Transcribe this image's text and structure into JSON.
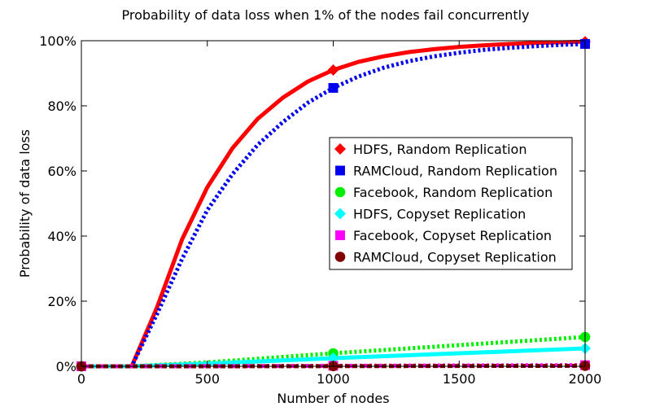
{
  "chart_data": {
    "type": "line",
    "title": "Probability of data loss when 1% of the nodes fail concurrently",
    "xlabel": "Number of nodes",
    "ylabel": "Probability of data loss",
    "xlim": [
      0,
      2000
    ],
    "ylim": [
      0,
      100
    ],
    "xticks": [
      0,
      500,
      1000,
      1500,
      2000
    ],
    "xtick_labels": [
      "0",
      "500",
      "1000",
      "1500",
      "2000"
    ],
    "yticks": [
      0,
      20,
      40,
      60,
      80,
      100
    ],
    "ytick_labels": [
      "0%",
      "20%",
      "40%",
      "60%",
      "80%",
      "100%"
    ],
    "grid": false,
    "legend_position": "center-right",
    "series": [
      {
        "name": "HDFS, Random Replication",
        "color": "#ff0000",
        "line_style": "solid",
        "marker": "diamond",
        "x": [
          0,
          200,
          300,
          400,
          500,
          600,
          700,
          800,
          900,
          1000,
          1100,
          1200,
          1300,
          1400,
          1500,
          1600,
          1700,
          1800,
          1900,
          2000
        ],
        "y": [
          0,
          0,
          18,
          39,
          55,
          67,
          76,
          82.5,
          87.5,
          91,
          93.5,
          95.2,
          96.5,
          97.4,
          98.1,
          98.6,
          99,
          99.3,
          99.5,
          99.7
        ],
        "marker_x": [
          0,
          1000,
          2000
        ],
        "marker_y": [
          0,
          91,
          99.7
        ]
      },
      {
        "name": "RAMCloud, Random Replication",
        "color": "#0000ee",
        "line_style": "dotted",
        "marker": "square",
        "x": [
          0,
          200,
          300,
          400,
          500,
          600,
          700,
          800,
          900,
          1000,
          1100,
          1200,
          1300,
          1400,
          1500,
          1600,
          1700,
          1800,
          1900,
          2000
        ],
        "y": [
          0,
          0,
          16,
          33,
          48,
          59,
          68,
          75,
          81,
          85.5,
          89,
          91.7,
          93.7,
          95.2,
          96.3,
          97.2,
          97.8,
          98.3,
          98.7,
          99
        ],
        "marker_x": [
          0,
          1000,
          2000
        ],
        "marker_y": [
          0,
          85.5,
          99
        ]
      },
      {
        "name": "Facebook, Random Replication",
        "color": "#00ee00",
        "line_style": "dotted",
        "marker": "circle",
        "x": [
          0,
          200,
          500,
          1000,
          1500,
          2000
        ],
        "y": [
          0,
          0,
          1.2,
          4,
          6.5,
          9
        ],
        "marker_x": [
          0,
          1000,
          2000
        ],
        "marker_y": [
          0,
          4,
          9
        ]
      },
      {
        "name": "HDFS, Copyset Replication",
        "color": "#00ffff",
        "line_style": "solid",
        "marker": "diamond",
        "x": [
          0,
          200,
          500,
          1000,
          1500,
          2000
        ],
        "y": [
          0,
          0,
          0.8,
          2.5,
          4,
          5.5
        ],
        "marker_x": [
          0,
          1000,
          2000
        ],
        "marker_y": [
          0,
          2.5,
          5.5
        ]
      },
      {
        "name": "Facebook, Copyset Replication",
        "color": "#ff00ff",
        "line_style": "dotted",
        "marker": "square",
        "x": [
          0,
          200,
          500,
          1000,
          1500,
          2000
        ],
        "y": [
          0,
          0,
          0.05,
          0.15,
          0.25,
          0.35
        ],
        "marker_x": [
          0,
          1000,
          2000
        ],
        "marker_y": [
          0,
          0.15,
          0.35
        ]
      },
      {
        "name": "RAMCloud, Copyset Replication",
        "color": "#800000",
        "line_style": "dashed",
        "marker": "circle",
        "x": [
          0,
          200,
          500,
          1000,
          1500,
          2000
        ],
        "y": [
          0,
          0,
          0,
          0.05,
          0.1,
          0.15
        ],
        "marker_x": [
          0,
          1000,
          2000
        ],
        "marker_y": [
          0,
          0.05,
          0.15
        ]
      }
    ]
  }
}
